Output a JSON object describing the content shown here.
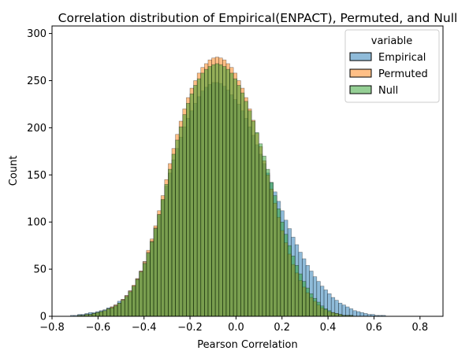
{
  "chart_data": {
    "type": "bar",
    "subtype": "overlaid-histogram",
    "title": "Correlation distribution of Empirical(ENPACT), Permuted, and Null",
    "xlabel": "Pearson Correlation",
    "ylabel": "Count",
    "xlim": [
      -0.8,
      0.9
    ],
    "ylim": [
      0,
      308
    ],
    "xticks": [
      -0.8,
      -0.6,
      -0.4,
      -0.2,
      0.0,
      0.2,
      0.4,
      0.6,
      0.8
    ],
    "xtick_labels": [
      "−0.8",
      "−0.6",
      "−0.4",
      "−0.2",
      "0.0",
      "0.2",
      "0.4",
      "0.6",
      "0.8"
    ],
    "yticks": [
      0,
      50,
      100,
      150,
      200,
      250,
      300
    ],
    "ytick_labels": [
      "0",
      "50",
      "100",
      "150",
      "200",
      "250",
      "300"
    ],
    "bin_start": -0.72,
    "bin_width": 0.01575,
    "grid": false,
    "legend": {
      "title": "variable",
      "placement": "top-right",
      "entries": [
        "Empirical",
        "Permuted",
        "Null"
      ]
    },
    "series": [
      {
        "name": "Empirical",
        "color": "#1f77b4",
        "values": [
          1,
          1,
          2,
          2,
          3,
          4,
          4,
          5,
          6,
          7,
          9,
          10,
          12,
          16,
          18,
          22,
          27,
          32,
          40,
          48,
          58,
          68,
          80,
          94,
          108,
          123,
          138,
          152,
          166,
          178,
          190,
          201,
          210,
          218,
          226,
          233,
          239,
          243,
          246,
          248,
          248,
          247,
          244,
          240,
          235,
          230,
          225,
          218,
          210,
          201,
          192,
          182,
          172,
          162,
          152,
          142,
          132,
          122,
          112,
          102,
          93,
          84,
          76,
          68,
          61,
          54,
          48,
          42,
          37,
          32,
          28,
          24,
          20,
          17,
          14,
          12,
          10,
          8,
          6,
          5,
          4,
          3,
          2,
          2,
          1,
          1,
          1
        ]
      },
      {
        "name": "Permuted",
        "color": "#ff7f0e",
        "values": [
          0,
          0,
          1,
          1,
          2,
          2,
          3,
          4,
          5,
          6,
          8,
          10,
          12,
          14,
          18,
          22,
          27,
          33,
          40,
          48,
          58,
          70,
          82,
          96,
          112,
          128,
          145,
          162,
          178,
          193,
          207,
          220,
          232,
          242,
          250,
          258,
          264,
          268,
          272,
          274,
          275,
          274,
          272,
          268,
          264,
          258,
          250,
          242,
          232,
          220,
          208,
          194,
          180,
          165,
          150,
          135,
          120,
          105,
          91,
          78,
          66,
          55,
          46,
          38,
          31,
          25,
          20,
          16,
          12,
          9,
          7,
          5,
          4,
          3,
          2,
          1,
          1,
          1,
          0,
          0,
          0,
          0,
          0,
          0,
          0,
          0,
          0
        ]
      },
      {
        "name": "Null",
        "color": "#2ca02c",
        "values": [
          0,
          0,
          1,
          1,
          2,
          2,
          3,
          4,
          5,
          6,
          8,
          9,
          11,
          14,
          17,
          21,
          26,
          32,
          39,
          47,
          56,
          67,
          79,
          93,
          108,
          124,
          140,
          156,
          172,
          187,
          201,
          214,
          226,
          236,
          245,
          252,
          258,
          262,
          265,
          267,
          268,
          267,
          265,
          262,
          258,
          252,
          245,
          237,
          228,
          218,
          207,
          195,
          183,
          170,
          156,
          142,
          128,
          114,
          100,
          87,
          75,
          64,
          54,
          45,
          37,
          30,
          24,
          19,
          15,
          11,
          8,
          6,
          4,
          3,
          2,
          1,
          1,
          1,
          0,
          0,
          0,
          0,
          0,
          0,
          0,
          0,
          0
        ]
      }
    ]
  }
}
